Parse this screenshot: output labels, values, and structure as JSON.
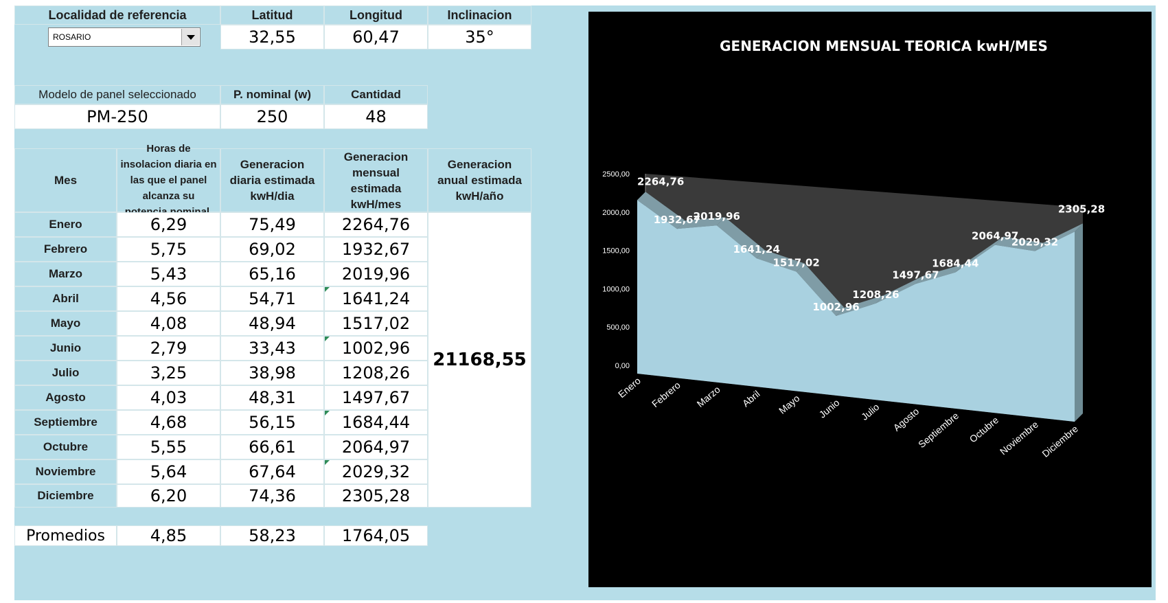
{
  "location": {
    "header_label": "Localidad de referencia",
    "selected": "ROSARIO",
    "lat_label": "Latitud",
    "lat_value": "32,55",
    "lon_label": "Longitud",
    "lon_value": "60,47",
    "incl_label": "Inclinacion",
    "incl_value": "35°"
  },
  "panel": {
    "model_label": "Modelo de panel seleccionado",
    "model_value": "PM-250",
    "power_label": "P. nominal (w)",
    "power_value": "250",
    "qty_label": "Cantidad",
    "qty_value": "48"
  },
  "table": {
    "headers": {
      "mes": "Mes",
      "horas": "Horas de insolacion diaria en las que el panel alcanza su potencia nominal.",
      "diaria": "Generacion diaria estimada kwH/dia",
      "mensual": "Generacion mensual estimada kwH/mes",
      "anual": "Generacion anual  estimada kwH/año"
    },
    "rows": [
      {
        "mes": "Enero",
        "horas": "6,29",
        "diaria": "75,49",
        "mensual": "2264,76"
      },
      {
        "mes": "Febrero",
        "horas": "5,75",
        "diaria": "69,02",
        "mensual": "1932,67"
      },
      {
        "mes": "Marzo",
        "horas": "5,43",
        "diaria": "65,16",
        "mensual": "2019,96"
      },
      {
        "mes": "Abril",
        "horas": "4,56",
        "diaria": "54,71",
        "mensual": "1641,24"
      },
      {
        "mes": "Mayo",
        "horas": "4,08",
        "diaria": "48,94",
        "mensual": "1517,02"
      },
      {
        "mes": "Junio",
        "horas": "2,79",
        "diaria": "33,43",
        "mensual": "1002,96"
      },
      {
        "mes": "Julio",
        "horas": "3,25",
        "diaria": "38,98",
        "mensual": "1208,26"
      },
      {
        "mes": "Agosto",
        "horas": "4,03",
        "diaria": "48,31",
        "mensual": "1497,67"
      },
      {
        "mes": "Septiembre",
        "horas": "4,68",
        "diaria": "56,15",
        "mensual": "1684,44"
      },
      {
        "mes": "Octubre",
        "horas": "5,55",
        "diaria": "66,61",
        "mensual": "2064,97"
      },
      {
        "mes": "Noviembre",
        "horas": "5,64",
        "diaria": "67,64",
        "mensual": "2029,32"
      },
      {
        "mes": "Diciembre",
        "horas": "6,20",
        "diaria": "74,36",
        "mensual": "2305,28"
      }
    ],
    "annual_total": "21168,55",
    "averages": {
      "label": "Promedios",
      "horas": "4,85",
      "diaria": "58,23",
      "mensual": "1764,05"
    }
  },
  "chart_data": {
    "type": "area",
    "title": "GENERACION MENSUAL TEORICA  kwH/MES",
    "categories": [
      "Enero",
      "Febrero",
      "Marzo",
      "Abril",
      "Mayo",
      "Junio",
      "Julio",
      "Agosto",
      "Septiembre",
      "Octubre",
      "Noviembre",
      "Diciembre"
    ],
    "values": [
      2264.76,
      1932.67,
      2019.96,
      1641.24,
      1517.02,
      1002.96,
      1208.26,
      1497.67,
      1684.44,
      2064.97,
      2029.32,
      2305.28
    ],
    "data_labels": [
      "2264,76",
      "1932,67",
      "2019,96",
      "1641,24",
      "1517,02",
      "1002,96",
      "1208,26",
      "1497,67",
      "1684,44",
      "2064,97",
      "2029,32",
      "2305,28"
    ],
    "ylim": [
      0,
      2500
    ],
    "yticks": [
      "0,00",
      "500,00",
      "1000,00",
      "1500,00",
      "2000,00",
      "2500,00"
    ],
    "legend": "none",
    "colors": {
      "fill": "#a9d1e0",
      "side": "#7f9ca6",
      "wall": "#3a3a3a",
      "background": "#000000",
      "text": "#ffffff"
    }
  }
}
